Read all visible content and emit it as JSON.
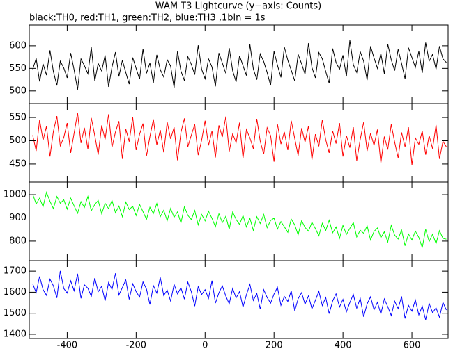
{
  "chart_data": [
    {
      "type": "line",
      "title": "WAM T3 Lightcurve (y−axis: Counts)",
      "subtitle": "black:TH0, red:TH1, green:TH2, blue:TH3 ,1bin = 1s",
      "color": "#000000",
      "x": [
        -500,
        -490,
        -480,
        -470,
        -460,
        -450,
        -440,
        -430,
        -420,
        -410,
        -400,
        -390,
        -380,
        -370,
        -360,
        -350,
        -340,
        -330,
        -320,
        -310,
        -300,
        -290,
        -280,
        -270,
        -260,
        -250,
        -240,
        -230,
        -220,
        -210,
        -200,
        -190,
        -180,
        -170,
        -160,
        -150,
        -140,
        -130,
        -120,
        -110,
        -100,
        -90,
        -80,
        -70,
        -60,
        -50,
        -40,
        -30,
        -20,
        -10,
        0,
        10,
        20,
        30,
        40,
        50,
        60,
        70,
        80,
        90,
        100,
        110,
        120,
        130,
        140,
        150,
        160,
        170,
        180,
        190,
        200,
        210,
        220,
        230,
        240,
        250,
        260,
        270,
        280,
        290,
        300,
        310,
        320,
        330,
        340,
        350,
        360,
        370,
        380,
        390,
        400,
        410,
        420,
        430,
        440,
        450,
        460,
        470,
        480,
        490,
        500,
        510,
        520,
        530,
        540,
        550,
        560,
        570,
        580,
        590,
        600,
        610,
        620,
        630,
        640,
        650,
        660,
        670,
        680,
        690,
        700
      ],
      "values": [
        548,
        572,
        521,
        560,
        535,
        590,
        543,
        512,
        566,
        551,
        529,
        584,
        547,
        503,
        571,
        556,
        538,
        597,
        522,
        561,
        544,
        579,
        509,
        553,
        586,
        532,
        568,
        541,
        515,
        574,
        550,
        526,
        593,
        539,
        562,
        518,
        580,
        547,
        531,
        569,
        555,
        507,
        588,
        544,
        523,
        576,
        559,
        536,
        601,
        548,
        527,
        571,
        553,
        510,
        584,
        562,
        539,
        595,
        545,
        520,
        578,
        556,
        534,
        603,
        549,
        525,
        582,
        565,
        541,
        512,
        588,
        557,
        530,
        597,
        568,
        546,
        522,
        581,
        560,
        537,
        606,
        552,
        529,
        585,
        571,
        543,
        517,
        594,
        563,
        548,
        579,
        532,
        612,
        558,
        541,
        587,
        566,
        524,
        599,
        573,
        550,
        583,
        538,
        604,
        569,
        545,
        592,
        561,
        527,
        596,
        574,
        552,
        588,
        540,
        607,
        566,
        581,
        548,
        599,
        571,
        563
      ],
      "xlim": [
        -510,
        705
      ],
      "ylim": [
        472,
        646
      ],
      "yticks": [
        500,
        550,
        600
      ]
    },
    {
      "type": "line",
      "color": "#ff0000",
      "x": [
        -500,
        -490,
        -480,
        -470,
        -460,
        -450,
        -440,
        -430,
        -420,
        -410,
        -400,
        -390,
        -380,
        -370,
        -360,
        -350,
        -340,
        -330,
        -320,
        -310,
        -300,
        -290,
        -280,
        -270,
        -260,
        -250,
        -240,
        -230,
        -220,
        -210,
        -200,
        -190,
        -180,
        -170,
        -160,
        -150,
        -140,
        -130,
        -120,
        -110,
        -100,
        -90,
        -80,
        -70,
        -60,
        -50,
        -40,
        -30,
        -20,
        -10,
        0,
        10,
        20,
        30,
        40,
        50,
        60,
        70,
        80,
        90,
        100,
        110,
        120,
        130,
        140,
        150,
        160,
        170,
        180,
        190,
        200,
        210,
        220,
        230,
        240,
        250,
        260,
        270,
        280,
        290,
        300,
        310,
        320,
        330,
        340,
        350,
        360,
        370,
        380,
        390,
        400,
        410,
        420,
        430,
        440,
        450,
        460,
        470,
        480,
        490,
        500,
        510,
        520,
        530,
        540,
        550,
        560,
        570,
        580,
        590,
        600,
        610,
        620,
        630,
        640,
        650,
        660,
        670,
        680,
        690,
        700
      ],
      "values": [
        512,
        478,
        545,
        501,
        531,
        466,
        520,
        553,
        489,
        507,
        538,
        474,
        516,
        560,
        495,
        528,
        482,
        549,
        511,
        470,
        533,
        503,
        557,
        486,
        519,
        542,
        461,
        525,
        498,
        551,
        480,
        514,
        537,
        467,
        509,
        546,
        491,
        523,
        475,
        540,
        504,
        529,
        458,
        518,
        548,
        487,
        512,
        535,
        469,
        501,
        543,
        490,
        521,
        464,
        533,
        508,
        552,
        477,
        515,
        496,
        539,
        462,
        524,
        506,
        483,
        547,
        499,
        471,
        528,
        511,
        455,
        536,
        493,
        519,
        480,
        543,
        505,
        468,
        527,
        497,
        532,
        459,
        514,
        488,
        545,
        502,
        474,
        521,
        494,
        538,
        466,
        511,
        485,
        529,
        457,
        503,
        540,
        478,
        516,
        490,
        524,
        452,
        509,
        481,
        535,
        497,
        463,
        518,
        487,
        529,
        448,
        506,
        492,
        521,
        470,
        511,
        483,
        534,
        461,
        499,
        487
      ],
      "xlim": [
        -510,
        705
      ],
      "ylim": [
        411,
        580
      ],
      "yticks": [
        450,
        500,
        550
      ]
    },
    {
      "type": "line",
      "color": "#00ff00",
      "x": [
        -500,
        -490,
        -480,
        -470,
        -460,
        -450,
        -440,
        -430,
        -420,
        -410,
        -400,
        -390,
        -380,
        -370,
        -360,
        -350,
        -340,
        -330,
        -320,
        -310,
        -300,
        -290,
        -280,
        -270,
        -260,
        -250,
        -240,
        -230,
        -220,
        -210,
        -200,
        -190,
        -180,
        -170,
        -160,
        -150,
        -140,
        -130,
        -120,
        -110,
        -100,
        -90,
        -80,
        -70,
        -60,
        -50,
        -40,
        -30,
        -20,
        -10,
        0,
        10,
        20,
        30,
        40,
        50,
        60,
        70,
        80,
        90,
        100,
        110,
        120,
        130,
        140,
        150,
        160,
        170,
        180,
        190,
        200,
        210,
        220,
        230,
        240,
        250,
        260,
        270,
        280,
        290,
        300,
        310,
        320,
        330,
        340,
        350,
        360,
        370,
        380,
        390,
        400,
        410,
        420,
        430,
        440,
        450,
        460,
        470,
        480,
        490,
        500,
        510,
        520,
        530,
        540,
        550,
        560,
        570,
        580,
        590,
        600,
        610,
        620,
        630,
        640,
        650,
        660,
        670,
        680,
        690,
        700
      ],
      "values": [
        1002,
        960,
        985,
        948,
        1010,
        971,
        940,
        992,
        963,
        978,
        938,
        985,
        952,
        920,
        970,
        945,
        992,
        931,
        958,
        975,
        918,
        963,
        940,
        975,
        922,
        951,
        905,
        968,
        936,
        950,
        910,
        958,
        927,
        894,
        946,
        919,
        962,
        905,
        933,
        888,
        941,
        903,
        926,
        878,
        948,
        911,
        893,
        932,
        870,
        915,
        887,
        929,
        898,
        862,
        918,
        880,
        907,
        851,
        925,
        893,
        872,
        910,
        861,
        898,
        846,
        905,
        876,
        915,
        858,
        889,
        899,
        852,
        884,
        862,
        838,
        895,
        870,
        827,
        888,
        859,
        843,
        881,
        854,
        823,
        877,
        846,
        890,
        836,
        861,
        812,
        868,
        829,
        855,
        880,
        818,
        847,
        834,
        866,
        805,
        842,
        857,
        815,
        840,
        796,
        868,
        826,
        809,
        848,
        780,
        831,
        805,
        843,
        816,
        772,
        851,
        798,
        830,
        789,
        845,
        812,
        808
      ],
      "xlim": [
        -510,
        705
      ],
      "ylim": [
        716,
        1054
      ],
      "yticks": [
        800,
        900,
        1000
      ]
    },
    {
      "type": "line",
      "color": "#0000ff",
      "x": [
        -500,
        -490,
        -480,
        -470,
        -460,
        -450,
        -440,
        -430,
        -420,
        -410,
        -400,
        -390,
        -380,
        -370,
        -360,
        -350,
        -340,
        -330,
        -320,
        -310,
        -300,
        -290,
        -280,
        -270,
        -260,
        -250,
        -240,
        -230,
        -220,
        -210,
        -200,
        -190,
        -180,
        -170,
        -160,
        -150,
        -140,
        -130,
        -120,
        -110,
        -100,
        -90,
        -80,
        -70,
        -60,
        -50,
        -40,
        -30,
        -20,
        -10,
        0,
        10,
        20,
        30,
        40,
        50,
        60,
        70,
        80,
        90,
        100,
        110,
        120,
        130,
        140,
        150,
        160,
        170,
        180,
        190,
        200,
        210,
        220,
        230,
        240,
        250,
        260,
        270,
        280,
        290,
        300,
        310,
        320,
        330,
        340,
        350,
        360,
        370,
        380,
        390,
        400,
        410,
        420,
        430,
        440,
        450,
        460,
        470,
        480,
        490,
        500,
        510,
        520,
        530,
        540,
        550,
        560,
        570,
        580,
        590,
        600,
        610,
        620,
        630,
        640,
        650,
        660,
        670,
        680,
        690,
        700
      ],
      "values": [
        1640,
        1598,
        1675,
        1612,
        1585,
        1662,
        1630,
        1573,
        1701,
        1618,
        1596,
        1654,
        1607,
        1688,
        1571,
        1635,
        1619,
        1580,
        1667,
        1602,
        1628,
        1559,
        1646,
        1613,
        1690,
        1587,
        1622,
        1658,
        1566,
        1640,
        1603,
        1577,
        1649,
        1615,
        1542,
        1631,
        1596,
        1670,
        1584,
        1610,
        1558,
        1637,
        1592,
        1621,
        1567,
        1648,
        1603,
        1534,
        1626,
        1589,
        1612,
        1571,
        1655,
        1548,
        1597,
        1630,
        1582,
        1545,
        1618,
        1573,
        1603,
        1529,
        1588,
        1637,
        1561,
        1594,
        1520,
        1612,
        1575,
        1548,
        1591,
        1623,
        1538,
        1580,
        1556,
        1607,
        1512,
        1569,
        1598,
        1543,
        1583,
        1521,
        1562,
        1604,
        1537,
        1575,
        1498,
        1558,
        1592,
        1530,
        1566,
        1507,
        1551,
        1589,
        1524,
        1571,
        1483,
        1545,
        1578,
        1516,
        1552,
        1497,
        1568,
        1531,
        1489,
        1557,
        1522,
        1580,
        1475,
        1538,
        1510,
        1563,
        1492,
        1534,
        1469,
        1547,
        1503,
        1526,
        1481,
        1552,
        1515
      ],
      "xlim": [
        -510,
        705
      ],
      "ylim": [
        1380,
        1750
      ],
      "yticks": [
        1400,
        1500,
        1600,
        1700
      ],
      "xticks": [
        -400,
        -200,
        0,
        200,
        400,
        600
      ]
    }
  ]
}
